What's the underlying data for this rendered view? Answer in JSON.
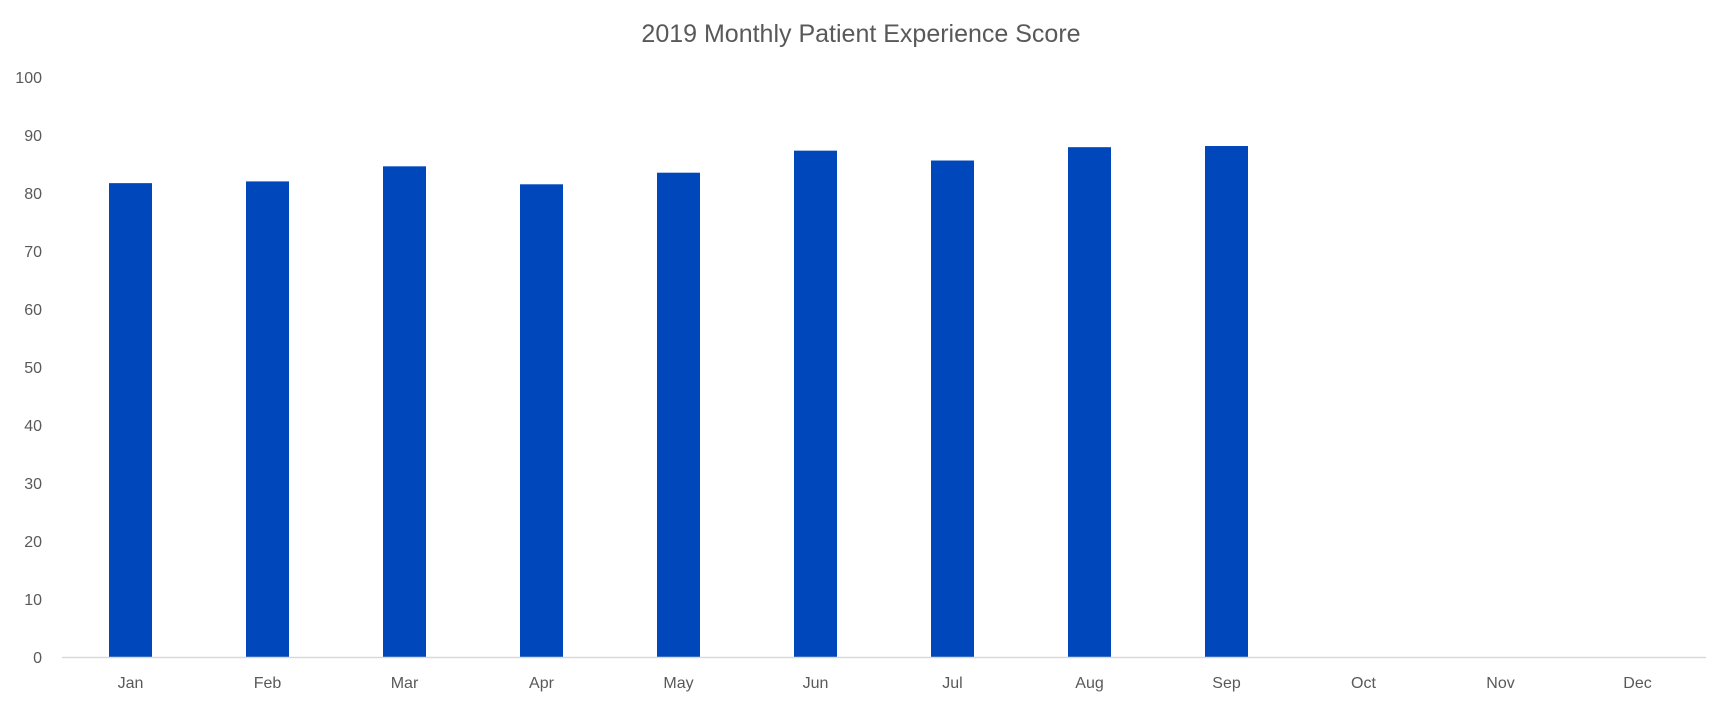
{
  "chart_data": {
    "type": "bar",
    "title": "2019 Monthly Patient Experience Score",
    "xlabel": "",
    "ylabel": "",
    "categories": [
      "Jan",
      "Feb",
      "Mar",
      "Apr",
      "May",
      "Jun",
      "Jul",
      "Aug",
      "Sep",
      "Oct",
      "Nov",
      "Dec"
    ],
    "values": [
      81.7,
      82.0,
      84.6,
      81.5,
      83.5,
      87.3,
      85.6,
      87.9,
      88.1,
      null,
      null,
      null
    ],
    "ylim": [
      0,
      100
    ],
    "yticks": [
      0,
      10,
      20,
      30,
      40,
      50,
      60,
      70,
      80,
      90,
      100
    ],
    "grid": false,
    "legend": "none",
    "bar_color": "#0047BB",
    "text_color": "#595959",
    "axis_color": "#D9D9D9"
  }
}
